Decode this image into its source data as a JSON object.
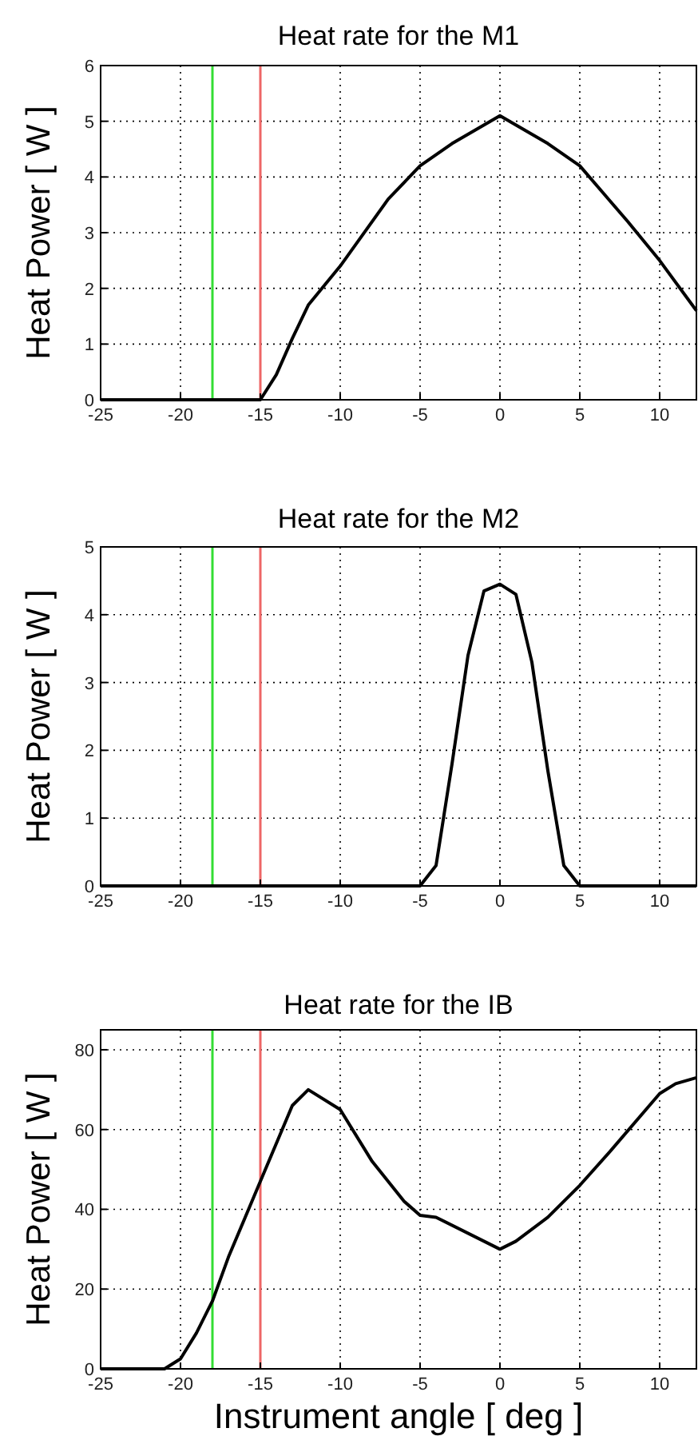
{
  "chart_data": [
    {
      "type": "line",
      "title": "Heat rate for the M1",
      "ylabel": "Heat Power [ W ]",
      "x": [
        -25,
        -15,
        -14,
        -13,
        -12,
        -10,
        -7,
        -5,
        -3,
        0,
        3,
        5,
        8,
        10,
        12.3
      ],
      "values": [
        0,
        0,
        0.45,
        1.1,
        1.7,
        2.4,
        3.6,
        4.2,
        4.6,
        5.1,
        4.6,
        4.2,
        3.2,
        2.5,
        1.6
      ],
      "color": "#000000",
      "xlim": [
        -25,
        12.3
      ],
      "xticks": [
        -25,
        -20,
        -15,
        -10,
        -5,
        0,
        5,
        10
      ],
      "ylim": [
        0,
        6
      ],
      "yticks": [
        0,
        1,
        2,
        3,
        4,
        5,
        6
      ],
      "grid": true,
      "ref_lines": [
        {
          "axis": "x",
          "value": -18,
          "color": "#33dd33"
        },
        {
          "axis": "x",
          "value": -15,
          "color": "#ee6666"
        }
      ]
    },
    {
      "type": "line",
      "title": "Heat rate for the M2",
      "ylabel": "Heat Power [ W ]",
      "x": [
        -25,
        -5,
        -4,
        -3,
        -2,
        -1,
        0,
        1,
        2,
        3,
        4,
        5,
        12.3
      ],
      "values": [
        0,
        0,
        0.3,
        1.8,
        3.4,
        4.35,
        4.45,
        4.3,
        3.3,
        1.7,
        0.3,
        0,
        0
      ],
      "color": "#000000",
      "xlim": [
        -25,
        12.3
      ],
      "xticks": [
        -25,
        -20,
        -15,
        -10,
        -5,
        0,
        5,
        10
      ],
      "ylim": [
        0,
        5
      ],
      "yticks": [
        0,
        1,
        2,
        3,
        4,
        5
      ],
      "grid": true,
      "ref_lines": [
        {
          "axis": "x",
          "value": -18,
          "color": "#33dd33"
        },
        {
          "axis": "x",
          "value": -15,
          "color": "#ee6666"
        }
      ]
    },
    {
      "type": "line",
      "title": "Heat rate for the IB",
      "ylabel": "Heat Power [ W ]",
      "xlabel": "Instrument angle [ deg ]",
      "x": [
        -25,
        -21,
        -20,
        -19,
        -18,
        -17,
        -15,
        -13,
        -12,
        -10,
        -8,
        -6,
        -5,
        -4,
        0,
        1,
        3,
        5,
        7,
        10,
        11,
        12.3
      ],
      "values": [
        0,
        0,
        2.5,
        9,
        17,
        28,
        47,
        66,
        70,
        65,
        52,
        42,
        38.5,
        38,
        30,
        32,
        38,
        46,
        55,
        69,
        71.5,
        73
      ],
      "color": "#000000",
      "xlim": [
        -25,
        12.3
      ],
      "xticks": [
        -25,
        -20,
        -15,
        -10,
        -5,
        0,
        5,
        10
      ],
      "ylim": [
        0,
        85
      ],
      "yticks": [
        0,
        20,
        40,
        60,
        80
      ],
      "grid": true,
      "ref_lines": [
        {
          "axis": "x",
          "value": -18,
          "color": "#33dd33"
        },
        {
          "axis": "x",
          "value": -15,
          "color": "#ee6666"
        }
      ]
    }
  ]
}
